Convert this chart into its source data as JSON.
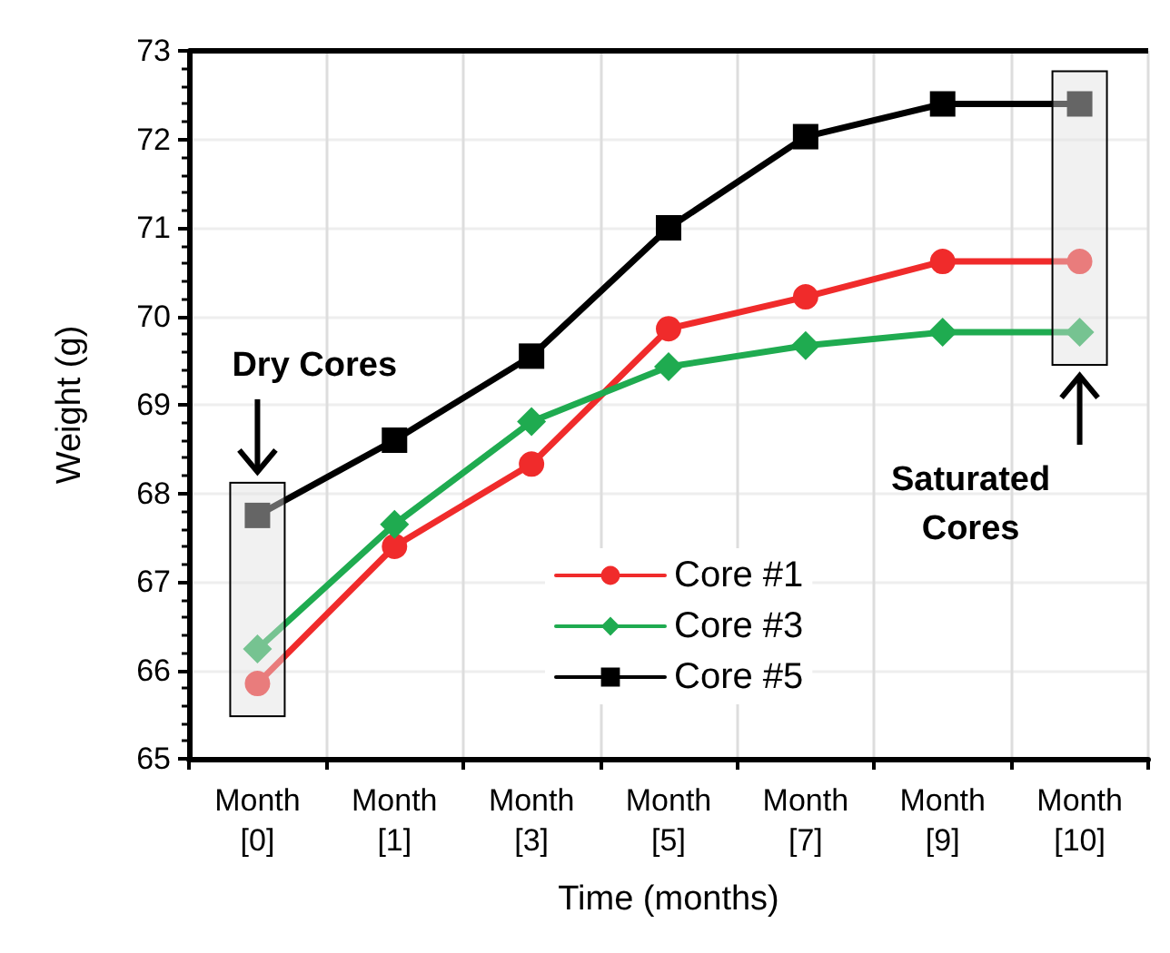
{
  "chart_data": {
    "type": "line",
    "xlabel": "Time (months)",
    "ylabel": "Weight (g)",
    "categories": [
      "Month\n[0]",
      "Month\n[1]",
      "Month\n[3]",
      "Month\n[5]",
      "Month\n[7]",
      "Month\n[9]",
      "Month\n[10]"
    ],
    "series": [
      {
        "name": "Core #1",
        "color": "#f02b2b",
        "marker": "circle",
        "values": [
          65.85,
          67.4,
          68.33,
          69.86,
          70.22,
          70.62,
          70.62
        ]
      },
      {
        "name": "Core #3",
        "color": "#1fab50",
        "marker": "diamond",
        "values": [
          66.24,
          67.65,
          68.81,
          69.43,
          69.67,
          69.82,
          69.82
        ]
      },
      {
        "name": "Core #5",
        "color": "#000000",
        "marker": "square",
        "values": [
          67.75,
          68.6,
          69.55,
          71.0,
          72.03,
          72.4,
          72.4
        ]
      }
    ],
    "ylim": [
      65,
      73
    ],
    "yticks": [
      65,
      66,
      67,
      68,
      69,
      70,
      71,
      72,
      73
    ],
    "grid": true,
    "legend": "bottom",
    "line_style": "solid",
    "annotations": [
      "Dry Cores",
      "Saturated Cores"
    ]
  }
}
